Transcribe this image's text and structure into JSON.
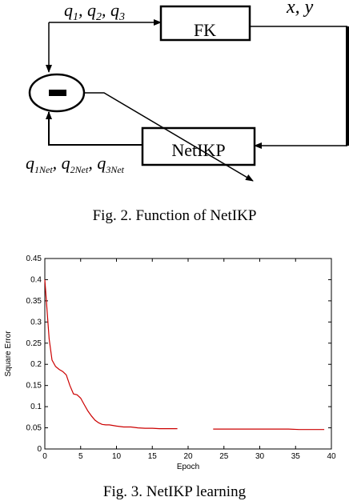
{
  "diagram": {
    "input_label": "q",
    "input_subs": [
      "1",
      "2",
      "3"
    ],
    "output_label": "x, y",
    "fk_block": "FK",
    "netikp_block": "NetIKP",
    "minus_symbol": "−",
    "feedback_label": "q",
    "feedback_subs": [
      "1Net",
      "2Net",
      "3Net"
    ]
  },
  "captions": {
    "fig2": "Fig. 2. Function of NetIKP",
    "fig3": "Fig. 3. NetIKP learning"
  },
  "chart_data": {
    "type": "line",
    "xlabel": "Epoch",
    "ylabel": "Square Error",
    "xlim": [
      0,
      40
    ],
    "ylim": [
      0,
      0.45
    ],
    "xticks": [
      0,
      5,
      10,
      15,
      20,
      25,
      30,
      35,
      40
    ],
    "yticks": [
      0,
      0.05,
      0.1,
      0.15,
      0.2,
      0.25,
      0.3,
      0.35,
      0.4,
      0.45
    ],
    "grid": false,
    "series": [
      {
        "color": "#cc0000",
        "segments": [
          {
            "x": [
              0,
              0.3,
              0.6,
              1.0,
              1.5,
              2.0,
              2.5,
              3.0,
              3.5,
              4.0,
              4.5,
              5.0,
              5.5,
              6.0,
              6.5,
              7.0,
              7.5,
              8.0,
              8.5,
              9.0,
              10.0,
              11.0,
              12.0,
              13.0,
              14.0,
              15.0,
              16.0,
              17.0,
              18.5
            ],
            "y": [
              0.4,
              0.33,
              0.26,
              0.21,
              0.195,
              0.188,
              0.183,
              0.175,
              0.15,
              0.13,
              0.128,
              0.12,
              0.105,
              0.09,
              0.078,
              0.068,
              0.062,
              0.058,
              0.057,
              0.057,
              0.054,
              0.052,
              0.052,
              0.05,
              0.049,
              0.049,
              0.048,
              0.048,
              0.048
            ]
          },
          {
            "x": [
              23.5,
              26.0,
              28.0,
              30.0,
              32.0,
              34.0,
              35.5,
              37.0,
              38.0,
              39.0
            ],
            "y": [
              0.047,
              0.047,
              0.047,
              0.047,
              0.047,
              0.047,
              0.046,
              0.046,
              0.046,
              0.046
            ]
          }
        ]
      }
    ]
  }
}
